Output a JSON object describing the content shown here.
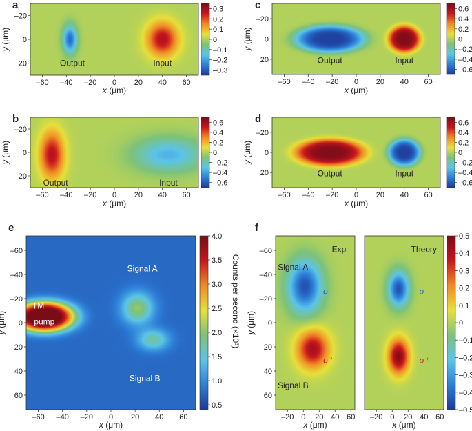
{
  "colormap": [
    "#1d3a99",
    "#2d7fd8",
    "#5cc4e8",
    "#7dc27a",
    "#e7e03a",
    "#f08a24",
    "#c8161d",
    "#7a0c18"
  ],
  "chart_data": [
    {
      "id": "a",
      "panel_label": "a",
      "type": "heatmap",
      "xlabel": "x (μm)",
      "ylabel": "y (μm)",
      "xlim": [
        -70,
        70
      ],
      "ylim": [
        -30,
        30
      ],
      "xticks": [
        -60,
        -40,
        -20,
        0,
        20,
        40,
        60
      ],
      "yticks": [
        -20,
        0,
        20
      ],
      "colorbar": {
        "min": -0.35,
        "max": 0.35,
        "ticks": [
          0.3,
          0.2,
          0.1,
          0,
          -0.1,
          -0.2,
          -0.3
        ],
        "labels": [
          "0.3",
          "0.2",
          "0.1",
          "0",
          "–0.1",
          "–0.2",
          "–0.3"
        ],
        "title": ""
      },
      "blobs": [
        {
          "x": -37,
          "y": 0,
          "sx": 4,
          "sy": 8,
          "a": -0.28
        },
        {
          "x": 40,
          "y": 0,
          "sx": 9,
          "sy": 10,
          "a": 0.28
        }
      ],
      "annotations": [
        {
          "text": "Output",
          "x": -35,
          "y": 20
        },
        {
          "text": "Input",
          "x": 40,
          "y": 20
        }
      ]
    },
    {
      "id": "b",
      "panel_label": "b",
      "type": "heatmap",
      "xlabel": "x (μm)",
      "ylabel": "y (μm)",
      "xlim": [
        -70,
        70
      ],
      "ylim": [
        -30,
        30
      ],
      "xticks": [
        -60,
        -40,
        -20,
        0,
        20,
        40,
        60
      ],
      "yticks": [
        -20,
        0,
        20
      ],
      "colorbar": {
        "min": -0.7,
        "max": 0.7,
        "ticks": [
          0.6,
          0.4,
          0.2,
          0,
          -0.2,
          -0.4,
          -0.6
        ],
        "labels": [
          "0.6",
          "0.4",
          "0.2",
          "0",
          "–0.2",
          "–0.4",
          "–0.6"
        ],
        "title": ""
      },
      "blobs": [
        {
          "x": -52,
          "y": 2,
          "sx": 7,
          "sy": 14,
          "a": 0.55
        },
        {
          "x": 45,
          "y": 2,
          "sx": 20,
          "sy": 10,
          "a": -0.35
        }
      ],
      "annotations": [
        {
          "text": "Output",
          "x": -49,
          "y": 26
        },
        {
          "text": "Input",
          "x": 45,
          "y": 26
        }
      ]
    },
    {
      "id": "c",
      "panel_label": "c",
      "type": "heatmap",
      "xlabel": "x (μm)",
      "ylabel": "y (μm)",
      "xlim": [
        -70,
        70
      ],
      "ylim": [
        -35,
        35
      ],
      "xticks": [
        -60,
        -40,
        -20,
        0,
        20,
        40,
        60
      ],
      "yticks": [
        -20,
        0,
        20
      ],
      "colorbar": {
        "min": -0.7,
        "max": 0.7,
        "ticks": [
          0.6,
          0.4,
          0.2,
          0,
          -0.2,
          -0.4,
          -0.6
        ],
        "labels": [
          "0.6",
          "0.4",
          "0.2",
          "0",
          "–0.2",
          "–0.4",
          "–0.6"
        ],
        "title": ""
      },
      "blobs": [
        {
          "x": -22,
          "y": 0,
          "sx": 24,
          "sy": 11,
          "a": -0.68,
          "p": 4
        },
        {
          "x": 40,
          "y": 0,
          "sx": 11,
          "sy": 11,
          "a": 0.68,
          "p": 4
        }
      ],
      "annotations": [
        {
          "text": "Output",
          "x": -22,
          "y": 21
        },
        {
          "text": "Input",
          "x": 40,
          "y": 21
        }
      ]
    },
    {
      "id": "d",
      "panel_label": "d",
      "type": "heatmap",
      "xlabel": "x (μm)",
      "ylabel": "y (μm)",
      "xlim": [
        -70,
        70
      ],
      "ylim": [
        -35,
        35
      ],
      "xticks": [
        -60,
        -40,
        -20,
        0,
        20,
        40,
        60
      ],
      "yticks": [
        -20,
        0,
        20
      ],
      "colorbar": {
        "min": -0.7,
        "max": 0.7,
        "ticks": [
          0.6,
          0.4,
          0.2,
          0,
          -0.2,
          -0.4,
          -0.6
        ],
        "labels": [
          "0.6",
          "0.4",
          "0.2",
          "0",
          "–0.2",
          "–0.4",
          "–0.6"
        ],
        "title": ""
      },
      "blobs": [
        {
          "x": -22,
          "y": 0,
          "sx": 24,
          "sy": 11,
          "a": 0.68,
          "p": 4
        },
        {
          "x": 40,
          "y": 0,
          "sx": 11,
          "sy": 11,
          "a": -0.68,
          "p": 4
        }
      ],
      "annotations": [
        {
          "text": "Output",
          "x": -22,
          "y": 21
        },
        {
          "text": "Input",
          "x": 40,
          "y": 21
        }
      ]
    },
    {
      "id": "e",
      "panel_label": "e",
      "type": "heatmap",
      "xlabel": "x (μm)",
      "ylabel": "y (μm)",
      "xlim": [
        -70,
        70
      ],
      "ylim": [
        -72,
        72
      ],
      "xticks": [
        -60,
        -40,
        -20,
        0,
        20,
        40,
        60
      ],
      "yticks": [
        -60,
        -40,
        -20,
        0,
        20,
        40,
        60
      ],
      "colorbar": {
        "min": 0.4,
        "max": 4.0,
        "ticks": [
          4.0,
          3.5,
          3.0,
          2.5,
          2.0,
          1.5,
          1.0,
          0.5
        ],
        "labels": [
          "4.0",
          "3.5",
          "3.0",
          "2.5",
          "2.0",
          "1.5",
          "1.0",
          "0.5"
        ],
        "title": "Counts per second (×10³)"
      },
      "background": 0.75,
      "blobs": [
        {
          "x": -55,
          "y": -5,
          "sx": 20,
          "sy": 10,
          "a": 3.8,
          "p": 3
        },
        {
          "x": 22,
          "y": -12,
          "sx": 9,
          "sy": 9,
          "a": 1.3
        },
        {
          "x": 35,
          "y": 14,
          "sx": 9,
          "sy": 6,
          "a": 1.0
        }
      ],
      "annotations": [
        {
          "text": "Signal A",
          "x": 26,
          "y": -45,
          "light": true
        },
        {
          "text": "Signal B",
          "x": 28,
          "y": 46,
          "light": true
        },
        {
          "text": "TM",
          "x": -60,
          "y": -14,
          "light": true
        },
        {
          "text": "pump",
          "x": -55,
          "y": -1,
          "light": true
        }
      ]
    },
    {
      "id": "f_exp",
      "panel_label": "f",
      "type": "heatmap",
      "xlabel": "x (μm)",
      "ylabel": "y (μm)",
      "xlim": [
        -35,
        65
      ],
      "ylim": [
        -72,
        72
      ],
      "xticks": [
        -20,
        0,
        20,
        40,
        60
      ],
      "yticks": [
        -60,
        -40,
        -20,
        0,
        20,
        40,
        60
      ],
      "colorbar": {
        "min": -0.5,
        "max": 0.5,
        "ticks": [
          0.5,
          0.4,
          0.3,
          0.2,
          0.1,
          0,
          -0.1,
          -0.2,
          -0.3,
          -0.4,
          -0.5
        ],
        "labels": [
          "0.5",
          "0.4",
          "0.3",
          "0.2",
          "0.1",
          "0",
          "–0.1",
          "–0.2",
          "–0.3",
          "–0.4",
          "–0.5"
        ],
        "title": ""
      },
      "blobs": [
        {
          "x": 2,
          "y": -30,
          "sx": 15,
          "sy": 15,
          "a": -0.45
        },
        {
          "x": 12,
          "y": 22,
          "sx": 14,
          "sy": 11,
          "a": 0.42
        }
      ],
      "annotations": [
        {
          "text": "Exp",
          "x": 45,
          "y": -61
        },
        {
          "text": "Signal A",
          "x": -13,
          "y": -46
        },
        {
          "text": "Signal B",
          "x": -13,
          "y": 52
        },
        {
          "text": "σ⁻",
          "x": 31,
          "y": -26,
          "italic": true,
          "color": "#1f5fbf"
        },
        {
          "text": "σ⁺",
          "x": 31,
          "y": 31,
          "italic": true,
          "color": "#c8161d"
        }
      ]
    },
    {
      "id": "f_theory",
      "panel_label": "",
      "type": "heatmap",
      "xlabel": "x (μm)",
      "ylabel": "",
      "xlim": [
        -35,
        65
      ],
      "ylim": [
        -72,
        72
      ],
      "xticks": [
        -20,
        0,
        20,
        40,
        60
      ],
      "yticks": [],
      "colorbar": {
        "min": -0.5,
        "max": 0.5,
        "ticks": [
          0.5,
          0.4,
          0.3,
          0.2,
          0.1,
          0,
          -0.1,
          -0.2,
          -0.3,
          -0.4,
          -0.5
        ],
        "labels": [
          "0.5",
          "0.4",
          "0.3",
          "0.2",
          "0.1",
          "0",
          "–0.1",
          "–0.2",
          "–0.3",
          "–0.4",
          "–0.5"
        ],
        "title": ""
      },
      "blobs": [
        {
          "x": 8,
          "y": -28,
          "sx": 9,
          "sy": 10,
          "a": -0.45
        },
        {
          "x": 8,
          "y": 28,
          "sx": 9,
          "sy": 10,
          "a": 0.48
        }
      ],
      "annotations": [
        {
          "text": "Theory",
          "x": 40,
          "y": -61
        },
        {
          "text": "σ⁻",
          "x": 40,
          "y": -26,
          "italic": true,
          "color": "#1f5fbf"
        },
        {
          "text": "σ⁺",
          "x": 40,
          "y": 31,
          "italic": true,
          "color": "#c8161d"
        }
      ]
    }
  ]
}
